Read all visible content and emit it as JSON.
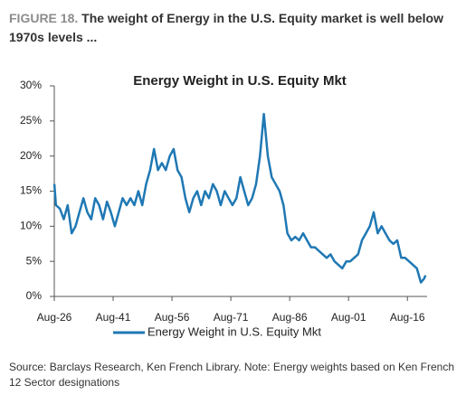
{
  "figure": {
    "label": "FIGURE 18.",
    "title": "The weight of Energy in the U.S. Equity market is well below 1970s levels ..."
  },
  "source": "Source: Barclays Research, Ken French Library. Note: Energy weights based on Ken French 12 Sector designations",
  "chart_data": {
    "type": "line",
    "title": "Energy Weight in U.S. Equity Mkt",
    "x": [
      1926.6,
      1927,
      1928,
      1929,
      1930,
      1931,
      1932,
      1933,
      1934,
      1935,
      1936,
      1937,
      1938,
      1939,
      1940,
      1941,
      1942,
      1943,
      1944,
      1945,
      1946,
      1947,
      1948,
      1949,
      1950,
      1951,
      1952,
      1953,
      1954,
      1955,
      1956,
      1957,
      1958,
      1959,
      1960,
      1961,
      1962,
      1963,
      1964,
      1965,
      1966,
      1967,
      1968,
      1969,
      1970,
      1971,
      1972,
      1973,
      1974,
      1975,
      1976,
      1977,
      1978,
      1979,
      1980,
      1981,
      1982,
      1983,
      1984,
      1985,
      1986,
      1987,
      1988,
      1989,
      1990,
      1991,
      1992,
      1993,
      1994,
      1995,
      1996,
      1997,
      1998,
      1999,
      2000,
      2001,
      2002,
      2003,
      2004,
      2005,
      2006,
      2007,
      2008,
      2009,
      2010,
      2011,
      2012,
      2013,
      2014,
      2015,
      2016,
      2017,
      2018,
      2019,
      2020,
      2020.8,
      2021.2
    ],
    "series": [
      {
        "name": "Energy Weight in U.S. Equity Mkt",
        "color": "#1f78b4",
        "values": [
          16,
          13,
          12.5,
          11,
          13,
          9,
          10,
          12,
          14,
          12,
          11,
          14,
          13,
          11,
          13.5,
          12,
          10,
          12,
          14,
          13,
          14,
          13,
          15,
          13,
          16,
          18,
          21,
          18,
          19,
          18,
          20,
          21,
          18,
          17,
          14,
          12,
          14,
          15,
          13,
          15,
          14,
          16,
          15,
          13,
          15,
          14,
          13,
          14,
          17,
          15,
          13,
          14,
          16,
          20,
          26,
          20,
          17,
          16,
          15,
          13,
          9,
          8,
          8.5,
          8,
          9,
          8,
          7,
          7,
          6.5,
          6,
          5.5,
          6,
          5,
          4.5,
          4,
          5,
          5,
          5.5,
          6,
          8,
          9,
          10,
          12,
          9,
          10,
          9,
          8,
          7.5,
          8,
          5.5,
          5.5,
          5,
          4.5,
          4,
          2,
          2.5,
          3
        ]
      }
    ],
    "xlim": [
      1926.58,
      2021.6
    ],
    "xticks": [
      {
        "value": 1926.58,
        "label": "Aug-26"
      },
      {
        "value": 1941.58,
        "label": "Aug-41"
      },
      {
        "value": 1956.58,
        "label": "Aug-56"
      },
      {
        "value": 1971.58,
        "label": "Aug-71"
      },
      {
        "value": 1986.58,
        "label": "Aug-86"
      },
      {
        "value": 2001.58,
        "label": "Aug-01"
      },
      {
        "value": 2016.58,
        "label": "Aug-16"
      }
    ],
    "ylim": [
      0,
      30
    ],
    "yticks": [
      {
        "value": 0,
        "label": "0%"
      },
      {
        "value": 5,
        "label": "5%"
      },
      {
        "value": 10,
        "label": "10%"
      },
      {
        "value": 15,
        "label": "15%"
      },
      {
        "value": 20,
        "label": "20%"
      },
      {
        "value": 25,
        "label": "25%"
      },
      {
        "value": 30,
        "label": "30%"
      }
    ],
    "legend": "bottom",
    "grid": false
  }
}
